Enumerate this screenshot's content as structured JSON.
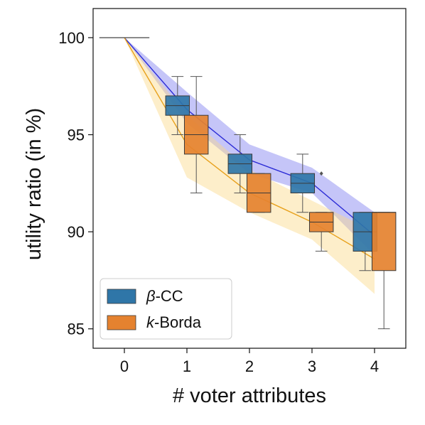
{
  "chart_data": {
    "type": "box",
    "xlabel": "# voter attributes",
    "ylabel": "utility ratio (in %)",
    "xlim": [
      -0.5,
      4.5
    ],
    "ylim": [
      84,
      101.5
    ],
    "x_ticks": [
      0,
      1,
      2,
      3,
      4
    ],
    "y_ticks": [
      85,
      90,
      95,
      100
    ],
    "grid": false,
    "legend_position": "lower-left",
    "series": [
      {
        "name_prefix": "β",
        "name_suffix": "-CC",
        "color": "#2f76a8",
        "line_color": "#2b2bd6",
        "band_color": "#7f7ff0",
        "offset": -0.15,
        "mean_line": {
          "x": [
            0,
            1,
            2,
            3,
            4
          ],
          "y": [
            100,
            96.3,
            93.7,
            92.5,
            89.8
          ]
        },
        "band": {
          "x": [
            0,
            1,
            2,
            3,
            4
          ],
          "lower": [
            100,
            95.6,
            93.0,
            92.0,
            88.8
          ],
          "upper": [
            100,
            97.2,
            94.5,
            93.3,
            91.0
          ]
        },
        "boxes": [
          {
            "x": 1,
            "q1": 96.0,
            "median": 96.5,
            "q3": 97.0,
            "whislo": 95.0,
            "whishi": 98.0
          },
          {
            "x": 2,
            "q1": 93.0,
            "median": 93.5,
            "q3": 94.0,
            "whislo": 92.0,
            "whishi": 95.0
          },
          {
            "x": 3,
            "q1": 92.0,
            "median": 92.5,
            "q3": 93.0,
            "whislo": 91.0,
            "whishi": 94.0
          },
          {
            "x": 4,
            "q1": 89.0,
            "median": 90.0,
            "q3": 91.0,
            "whislo": 88.0,
            "whishi": 91.0
          }
        ]
      },
      {
        "name_prefix": "k",
        "name_suffix": "-Borda",
        "color": "#e5822f",
        "line_color": "#e8a11c",
        "band_color": "#fbd98a",
        "offset": 0.15,
        "mean_line": {
          "x": [
            0,
            1,
            2,
            3,
            4
          ],
          "y": [
            100,
            94.5,
            92.0,
            90.5,
            88.6
          ]
        },
        "band": {
          "x": [
            0,
            1,
            2,
            3,
            4
          ],
          "lower": [
            100,
            92.8,
            91.0,
            89.6,
            86.8
          ],
          "upper": [
            100,
            96.0,
            93.2,
            91.6,
            90.0
          ]
        },
        "boxes": [
          {
            "x": 1,
            "q1": 94.0,
            "median": 95.0,
            "q3": 96.0,
            "whislo": 92.0,
            "whishi": 98.0
          },
          {
            "x": 2,
            "q1": 91.0,
            "median": 92.0,
            "q3": 93.0,
            "whislo": 91.0,
            "whishi": 93.0
          },
          {
            "x": 3,
            "q1": 90.0,
            "median": 90.5,
            "q3": 91.0,
            "whislo": 89.0,
            "whishi": 91.0
          },
          {
            "x": 4,
            "q1": 88.0,
            "median": 91.0,
            "q3": 91.0,
            "whislo": 85.0,
            "whishi": 91.0
          }
        ],
        "fliers": [
          {
            "x": 3,
            "y": 93.0
          }
        ]
      }
    ],
    "baseline": {
      "x_from": -0.4,
      "x_to": 0.4,
      "y": 100
    }
  }
}
